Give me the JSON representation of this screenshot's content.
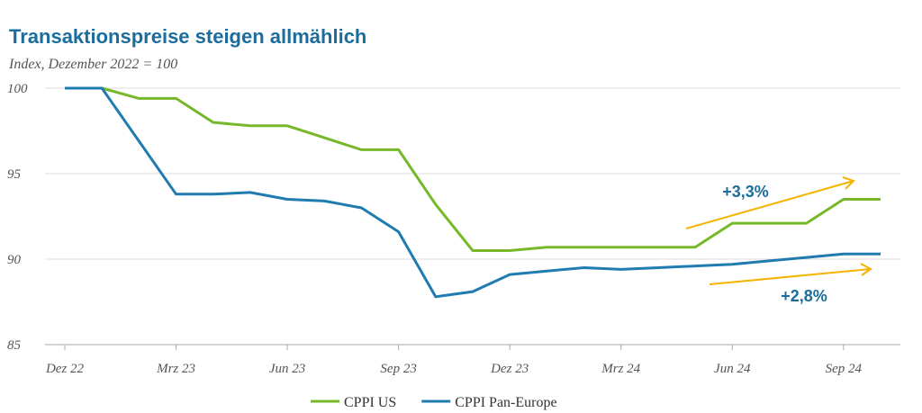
{
  "chart_data": {
    "type": "line",
    "title": "Transaktionspreise steigen allmählich",
    "subtitle": "Index, Dezember 2022 = 100",
    "categories": [
      "Dez 22",
      null,
      null,
      "Mrz 23",
      null,
      null,
      "Jun 23",
      null,
      null,
      "Sep 23",
      null,
      null,
      "Dez 23",
      null,
      null,
      "Mrz 24",
      null,
      null,
      "Jun 24",
      null,
      null,
      "Sep 24",
      null
    ],
    "series": [
      {
        "name": "CPPI US",
        "color": "#77b82a",
        "values": [
          100,
          100,
          99.4,
          99.4,
          98.0,
          97.8,
          97.8,
          97.1,
          96.4,
          96.4,
          93.2,
          90.5,
          90.5,
          90.7,
          90.7,
          90.7,
          90.7,
          90.7,
          92.1,
          92.1,
          92.1,
          93.5,
          93.5
        ]
      },
      {
        "name": "CPPI Pan-Europe",
        "color": "#1f7bb0",
        "values": [
          100,
          100,
          96.9,
          93.8,
          93.8,
          93.9,
          93.5,
          93.4,
          93.0,
          91.6,
          87.8,
          88.1,
          89.1,
          89.3,
          89.5,
          89.4,
          89.5,
          89.6,
          89.7,
          89.9,
          90.1,
          90.3,
          90.3
        ]
      }
    ],
    "ylim": [
      85,
      100
    ],
    "yticks": [
      85,
      90,
      95,
      100
    ],
    "grid": true,
    "annotations": [
      "+3,3%",
      "+2,8%"
    ]
  }
}
